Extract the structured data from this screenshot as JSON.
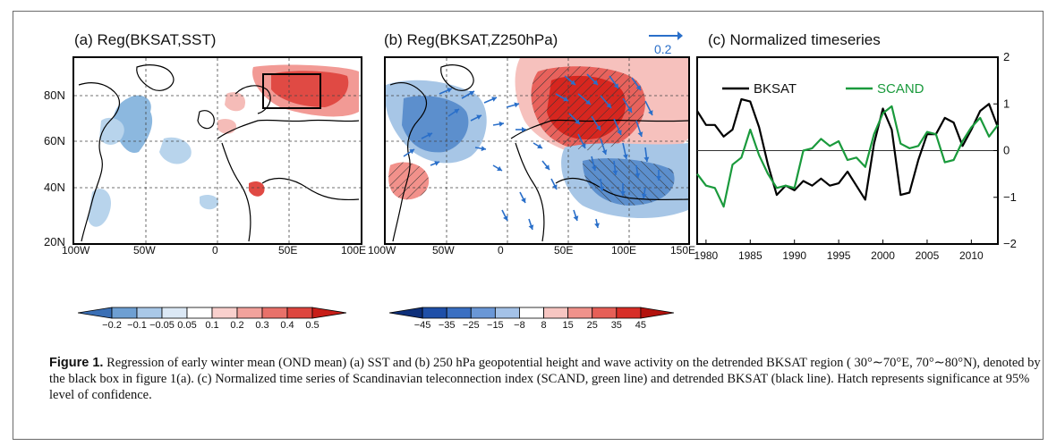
{
  "panels": {
    "a": {
      "title": "(a) Reg(BKSAT,SST)",
      "lat_ticks": [
        "80N",
        "60N",
        "40N",
        "20N"
      ],
      "lon_ticks": [
        "100W",
        "50W",
        "0",
        "50E",
        "100E"
      ],
      "colorbar_ticks": [
        "-0.2",
        "-0.1",
        "-0.05",
        "0.05",
        "0.1",
        "0.2",
        "0.3",
        "0.4",
        "0.5"
      ]
    },
    "b": {
      "title": "(b) Reg(BKSAT,Z250hPa)",
      "ref_vector_label": "0.2",
      "lon_ticks": [
        "100W",
        "50W",
        "0",
        "50E",
        "100E",
        "150E"
      ],
      "colorbar_ticks": [
        "-45",
        "-35",
        "-25",
        "-15",
        "-8",
        "8",
        "15",
        "25",
        "35",
        "45"
      ]
    },
    "c": {
      "title": "(c) Normalized timeseries"
    }
  },
  "colors": {
    "bksat": "#000000",
    "scand": "#1a9a3c",
    "ref_vector": "#2a6fc9",
    "blue_dark": "#2f5fa8",
    "red_dark": "#d7261f"
  },
  "caption": {
    "label": "Figure 1.",
    "text": "Regression of early winter mean (OND mean) (a) SST and (b) 250 hPa geopotential height and wave activity on the detrended BKSAT region ( 30°∼70°E, 70°∼80°N), denoted by the black box in figure 1(a). (c) Normalized time series of Scandinavian teleconnection index (SCAND, green line) and detrended BKSAT (black line). Hatch represents significance at 95% level of confidence."
  },
  "chart_data": {
    "type": "line",
    "title": "(c) Normalized timeseries",
    "x": [
      1979,
      1980,
      1981,
      1982,
      1983,
      1984,
      1985,
      1986,
      1987,
      1988,
      1989,
      1990,
      1991,
      1992,
      1993,
      1994,
      1995,
      1996,
      1997,
      1998,
      1999,
      2000,
      2001,
      2002,
      2003,
      2004,
      2005,
      2006,
      2007,
      2008,
      2009,
      2010,
      2011,
      2012,
      2013
    ],
    "x_ticks": [
      1980,
      1985,
      1990,
      1995,
      2000,
      2005,
      2010
    ],
    "y_ticks": [
      2,
      1,
      0,
      -1,
      -2
    ],
    "ylim": [
      -2,
      2
    ],
    "xlim": [
      1979,
      2013
    ],
    "legend_position": "top",
    "reference_line": 0,
    "series": [
      {
        "name": "BKSAT",
        "values": [
          0.85,
          0.55,
          0.55,
          0.3,
          0.45,
          1.1,
          1.05,
          0.5,
          -0.3,
          -0.95,
          -0.75,
          -0.85,
          -0.65,
          -0.75,
          -0.6,
          -0.75,
          -0.7,
          -0.45,
          -0.75,
          -1.05,
          0.15,
          0.9,
          0.45,
          -0.95,
          -0.9,
          -0.2,
          0.35,
          0.35,
          0.7,
          0.6,
          0.1,
          0.45,
          0.85,
          1.0,
          0.5
        ]
      },
      {
        "name": "SCAND",
        "values": [
          -0.5,
          -0.75,
          -0.8,
          -1.2,
          -0.3,
          -0.15,
          0.45,
          -0.1,
          -0.5,
          -0.8,
          -0.75,
          -0.8,
          0.0,
          0.05,
          0.25,
          0.1,
          0.2,
          -0.2,
          -0.15,
          -0.35,
          0.35,
          0.8,
          0.95,
          0.15,
          0.05,
          0.1,
          0.4,
          0.35,
          -0.25,
          -0.2,
          0.2,
          0.5,
          0.7,
          0.3,
          0.55
        ]
      }
    ]
  }
}
